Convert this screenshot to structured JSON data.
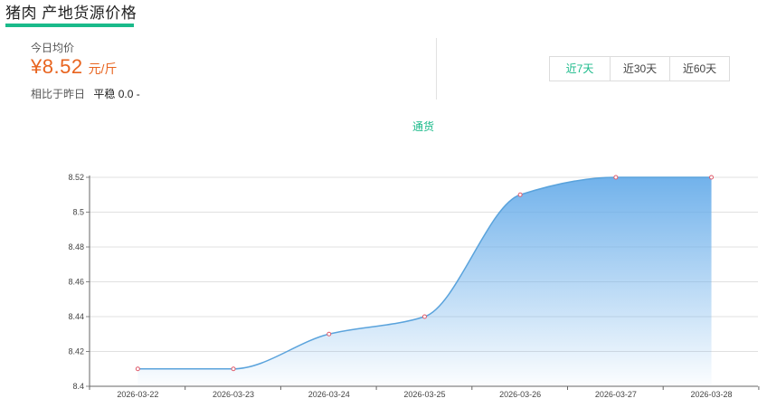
{
  "header": {
    "title": "猪肉 产地货源价格"
  },
  "price": {
    "label": "今日均价",
    "value": "¥8.52",
    "unit": "元/斤",
    "compare_label": "相比于昨日",
    "compare_status": "平稳",
    "compare_value": "0.0 -"
  },
  "range_tabs": [
    {
      "label": "近7天",
      "active": true
    },
    {
      "label": "近30天",
      "active": false
    },
    {
      "label": "近60天",
      "active": false
    }
  ],
  "colors": {
    "accent": "#1aba8a",
    "price": "#e8641f",
    "line": "#5aa3dc",
    "area_top": "#6aaeea",
    "marker": "#e05a6a"
  },
  "chart_data": {
    "type": "area",
    "x": [
      "2026-03-22",
      "2026-03-23",
      "2026-03-24",
      "2026-03-25",
      "2026-03-26",
      "2026-03-27",
      "2026-03-28"
    ],
    "series": [
      {
        "name": "通货",
        "values": [
          8.41,
          8.41,
          8.43,
          8.44,
          8.51,
          8.52,
          8.52
        ]
      }
    ],
    "yticks": [
      "8.4",
      "8.42",
      "8.44",
      "8.46",
      "8.48",
      "8.5",
      "8.52"
    ],
    "ylim": [
      8.4,
      8.52
    ],
    "grid": true,
    "legend_position": "top-center",
    "smooth": true
  }
}
